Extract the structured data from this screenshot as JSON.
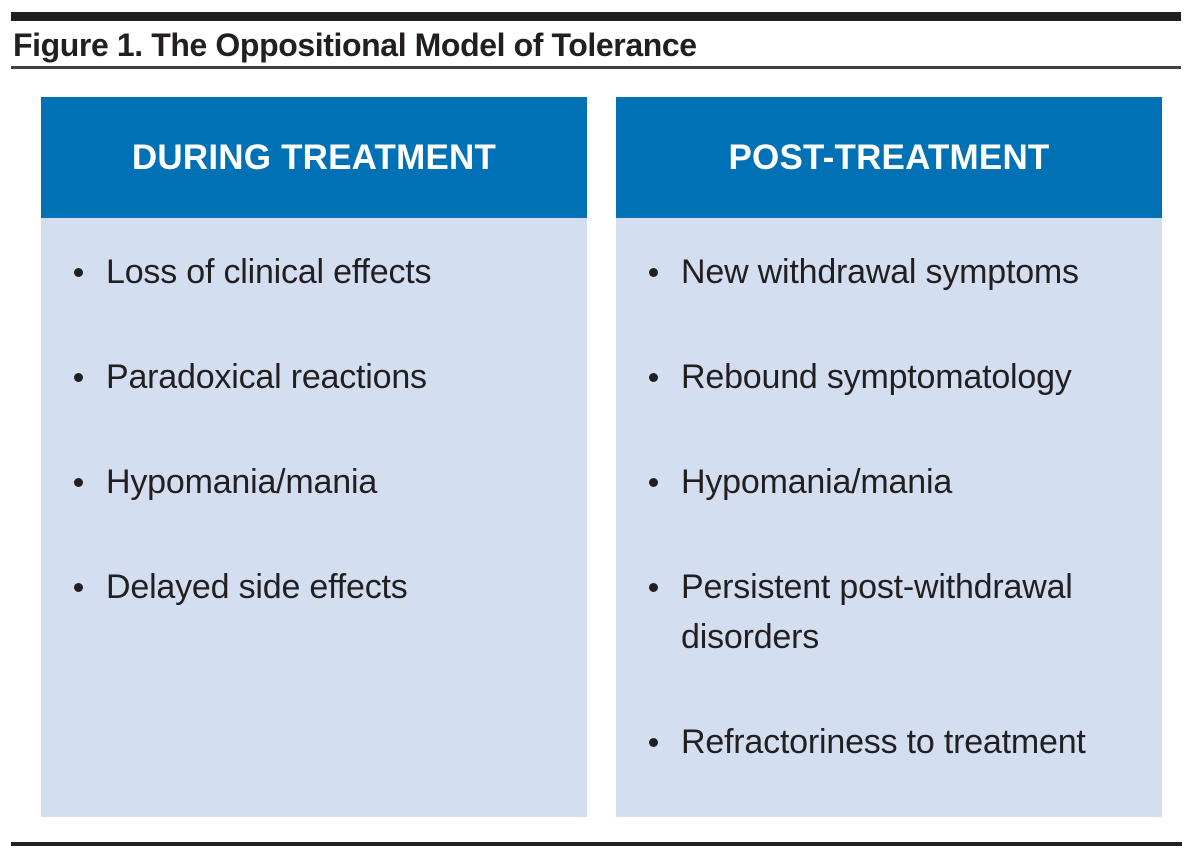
{
  "figure": {
    "title": "Figure 1. The Oppositional Model of Tolerance",
    "columns": [
      {
        "header": "DURING TREATMENT",
        "items": [
          "Loss of clinical effects",
          "Paradoxical reactions",
          "Hypomania/mania",
          "Delayed side effects"
        ]
      },
      {
        "header": "POST-TREATMENT",
        "items": [
          "New withdrawal symptoms",
          "Rebound symptomatology",
          "Hypomania/mania",
          "Persistent post-withdrawal disorders",
          "Refractoriness to treatment"
        ]
      }
    ],
    "colors": {
      "header_bg": "#0071b5",
      "body_bg": "#d3def1",
      "text": "#231f20",
      "rule": "#231f20"
    }
  }
}
